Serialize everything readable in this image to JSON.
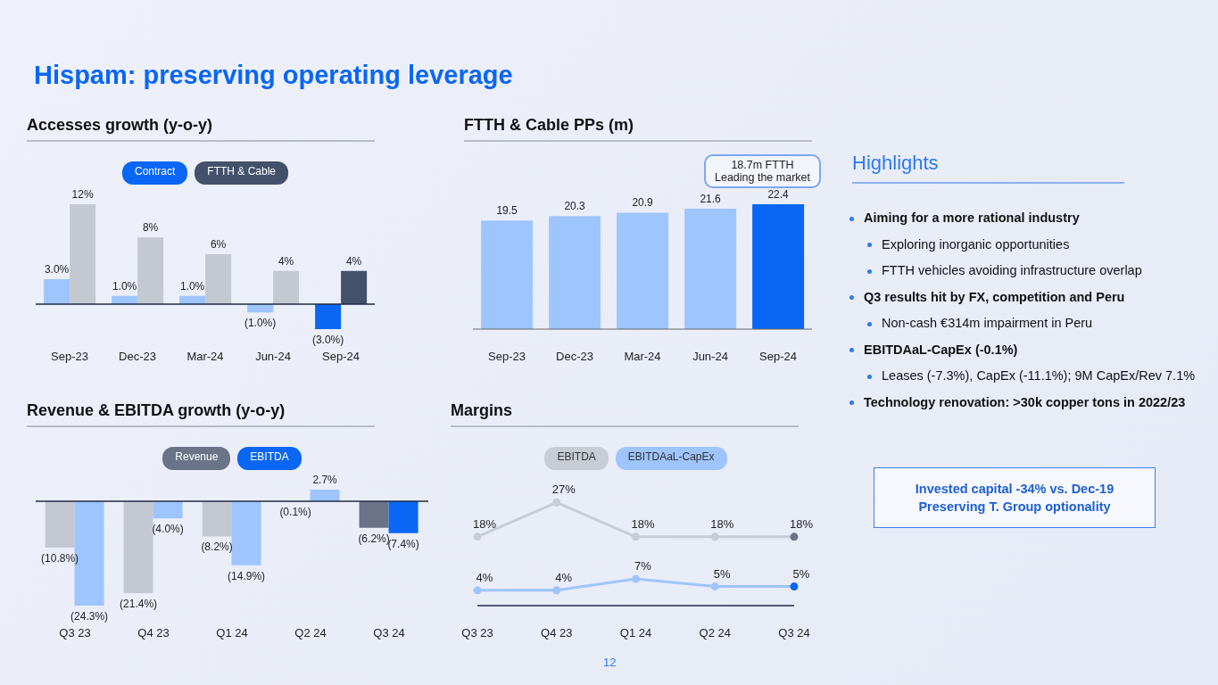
{
  "chart_data": [
    {
      "type": "bar",
      "title": "Accesses growth (y-o-y)",
      "categories": [
        "Sep-23",
        "Dec-23",
        "Mar-24",
        "Jun-24",
        "Sep-24"
      ],
      "legend": "top",
      "ref_lines": [
        {
          "axis": "y",
          "value": 0,
          "color": "#1f2a44"
        }
      ],
      "series": [
        {
          "name": "Contract",
          "color": "#0a66f5",
          "colors": [
            "#9ec5fe",
            "#9ec5fe",
            "#9ec5fe",
            "#9ec5fe",
            "#0a66f5"
          ],
          "values": [
            3.0,
            1.0,
            1.0,
            -1.0,
            -3.0
          ],
          "value_labels": [
            "3.0%",
            "1.0%",
            "1.0%",
            "(1.0%)",
            "(3.0%)"
          ]
        },
        {
          "name": "FTTH & Cable",
          "color": "#44516a",
          "colors": [
            "#c4c8d0",
            "#c4c8d0",
            "#c4c8d0",
            "#c4c8d0",
            "#44516a"
          ],
          "values": [
            12,
            8,
            6,
            4,
            4
          ],
          "value_labels": [
            "12%",
            "8%",
            "6%",
            "4%",
            "4%"
          ]
        }
      ]
    },
    {
      "type": "bar",
      "title": "FTTH & Cable PPs (m)",
      "categories": [
        "Sep-23",
        "Dec-23",
        "Mar-24",
        "Jun-24",
        "Sep-24"
      ],
      "annotations": [
        "18.7m FTTH\nLeading the market"
      ],
      "data_labels": true,
      "series": [
        {
          "colors": [
            "#9ec5fe",
            "#9ec5fe",
            "#9ec5fe",
            "#9ec5fe",
            "#0a66f5"
          ],
          "values": [
            19.5,
            20.3,
            20.9,
            21.6,
            22.4
          ]
        }
      ]
    },
    {
      "type": "bar",
      "title": "Revenue & EBITDA growth (y-o-y)",
      "categories": [
        "Q3 23",
        "Q4 23",
        "Q1 24",
        "Q2 24",
        "Q3 24"
      ],
      "legend": "top",
      "ref_lines": [
        {
          "axis": "y",
          "value": 0,
          "color": "#1f2a44"
        }
      ],
      "series": [
        {
          "name": "Revenue",
          "color": "#6b7388",
          "colors": [
            "#c4c8d0",
            "#c4c8d0",
            "#c4c8d0",
            "#c4c8d0",
            "#6b7388"
          ],
          "values": [
            -10.8,
            -21.4,
            -8.2,
            -0.1,
            -6.2
          ],
          "value_labels": [
            "(10.8%)",
            "(21.4%)",
            "(8.2%)",
            "(0.1%)",
            "(6.2%)"
          ]
        },
        {
          "name": "EBITDA",
          "color": "#0a66f5",
          "colors": [
            "#9ec5fe",
            "#9ec5fe",
            "#9ec5fe",
            "#9ec5fe",
            "#0a66f5"
          ],
          "values": [
            -24.3,
            -4.0,
            -14.9,
            2.7,
            -7.4
          ],
          "value_labels": [
            "(24.3%)",
            "(4.0%)",
            "(14.9%)",
            "2.7%",
            "(7.4%)"
          ]
        }
      ]
    },
    {
      "type": "line",
      "title": "Margins",
      "categories": [
        "Q3 23",
        "Q4 23",
        "Q1 24",
        "Q2 24",
        "Q3 24"
      ],
      "legend": "top",
      "marker": "circle",
      "series": [
        {
          "name": "EBITDA",
          "color": "#c8ccd4",
          "colors": [
            "#c8ccd4",
            "#c8ccd4",
            "#c8ccd4",
            "#c8ccd4",
            "#6b7388"
          ],
          "values": [
            18,
            27,
            18,
            18,
            18
          ],
          "value_labels": [
            "18%",
            "27%",
            "18%",
            "18%",
            "18%"
          ]
        },
        {
          "name": "EBITDAaL-CapEx",
          "color": "#9ec5fe",
          "colors": [
            "#9ec5fe",
            "#9ec5fe",
            "#9ec5fe",
            "#9ec5fe",
            "#0a66f5"
          ],
          "values": [
            4,
            4,
            7,
            5,
            5
          ],
          "value_labels": [
            "4%",
            "4%",
            "7%",
            "5%",
            "5%"
          ]
        }
      ]
    },
    {
      "type": "other",
      "title": "Hispam: preserving operating leverage",
      "subtitle": "Highlights",
      "annotations": [
        "Aiming for a more rational industry",
        "Exploring inorganic opportunities",
        "FTTH vehicles avoiding infrastructure overlap",
        "Q3 results hit by FX, competition and Peru",
        "Non-cash €314m impairment in Peru",
        "EBITDAaL-CapEx (-0.1%)",
        "Leases (-7.3%), CapEx (-11.1%); 9M CapEx/Rev 7.1%",
        "Technology renovation: >30k copper tons in 2022/23",
        "Invested capital -34% vs. Dec-19",
        "Preserving T. Group optionality",
        "12"
      ]
    }
  ]
}
